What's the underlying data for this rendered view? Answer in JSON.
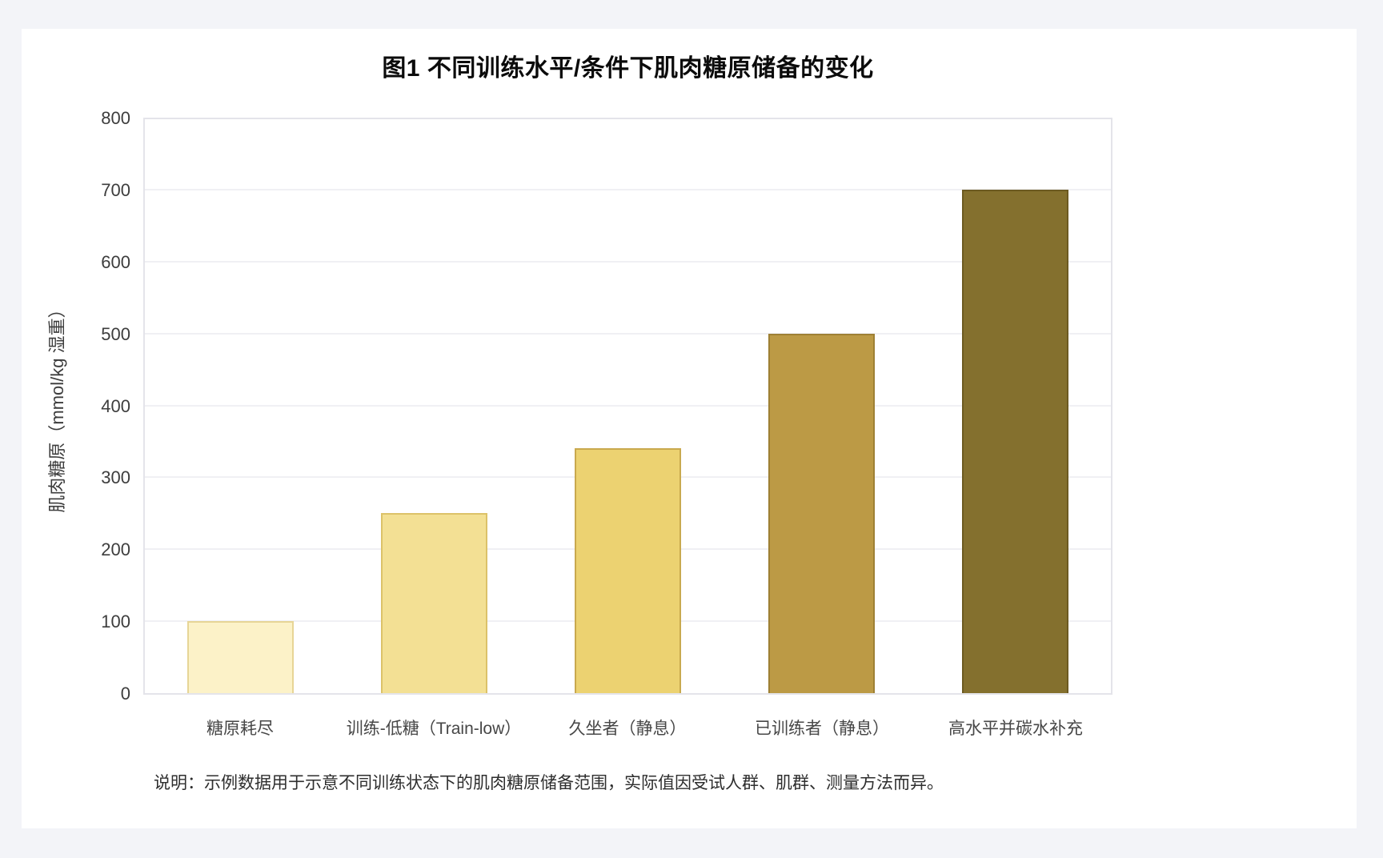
{
  "page": {
    "background_color": "#F3F4F8",
    "card_background_color": "#FFFFFF"
  },
  "chart_data": {
    "type": "bar",
    "title": "图1 不同训练水平/条件下肌肉糖原储备的变化",
    "ylabel": "肌肉糖原（mmol/kg 湿重）",
    "xlabel": "",
    "categories": [
      "糖原耗尽",
      "训练-低糖（Train-low）",
      "久坐者（静息）",
      "已训练者（静息）",
      "高水平并碳水补充"
    ],
    "values": [
      100,
      250,
      340,
      500,
      700
    ],
    "ylim": [
      0,
      800
    ],
    "yticks": [
      0,
      100,
      200,
      300,
      400,
      500,
      600,
      700,
      800
    ],
    "grid": true,
    "legend": "none",
    "bar_fill_colors": [
      "#FCF2C8",
      "#F3E094",
      "#ECD271",
      "#BC9A45",
      "#84702E"
    ],
    "bar_border_colors": [
      "#E7D596",
      "#DCC269",
      "#C9A94E",
      "#9E8034",
      "#6C5A21"
    ],
    "note": "说明：示例数据用于示意不同训练状态下的肌肉糖原储备范围，实际值因受试人群、肌群、测量方法而异。"
  }
}
